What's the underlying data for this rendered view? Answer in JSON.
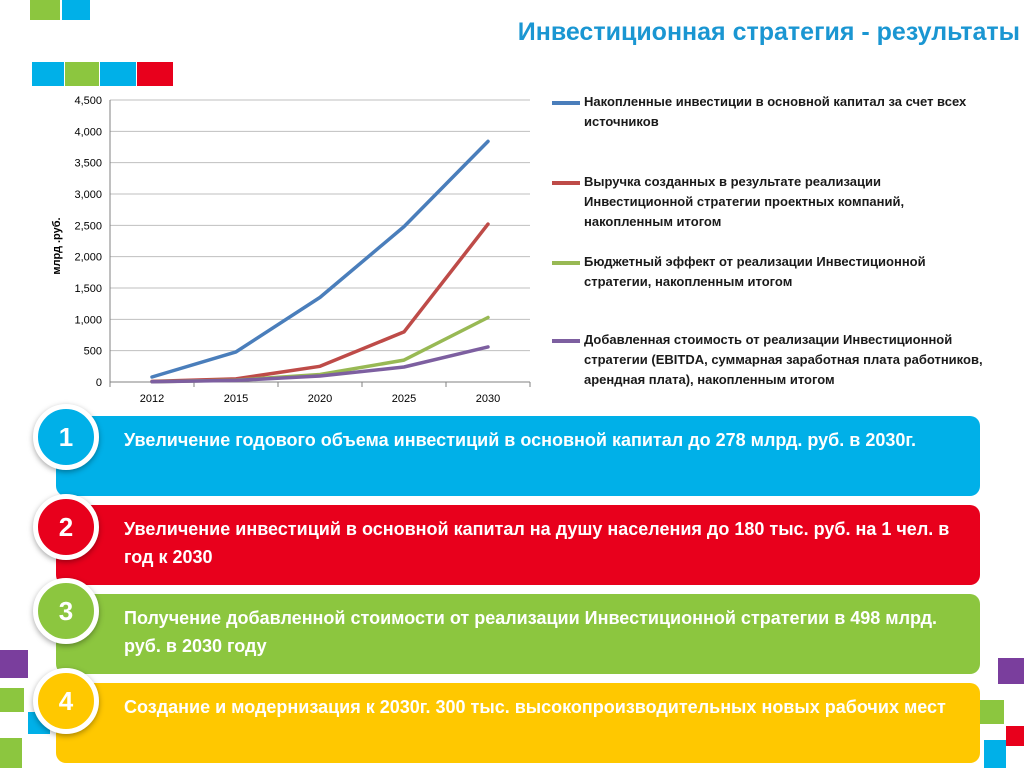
{
  "page": {
    "title": "Инвестиционная стратегия - результаты"
  },
  "colors": {
    "cyan": "#00b0e8",
    "green": "#8cc63f",
    "red": "#e8001c",
    "yellow": "#ffc800",
    "purple": "#7a3e9d",
    "title": "#1a96d2"
  },
  "chart_data": {
    "type": "line",
    "x": [
      "2012",
      "2015",
      "2020",
      "2025",
      "2030"
    ],
    "ylabel": "млрд .руб.",
    "ylim": [
      0,
      4500
    ],
    "yticks": [
      "0",
      "500",
      "1,000",
      "1,500",
      "2,000",
      "2,500",
      "3,000",
      "3,500",
      "4,000",
      "4,500"
    ],
    "grid": true,
    "legend_position": "right",
    "series": [
      {
        "name": "Накопленные инвестиции в основной капитал за счет всех источников",
        "color": "#4a7ebb",
        "values": [
          80,
          480,
          1350,
          2480,
          3840
        ]
      },
      {
        "name": "Выручка созданных в результате реализации Инвестиционной стратегии проектных компаний, накопленным итогом",
        "color": "#be4b48",
        "values": [
          10,
          50,
          250,
          800,
          2520
        ]
      },
      {
        "name": "Бюджетный эффект от реализации Инвестиционной стратегии, накопленным итогом",
        "color": "#98b954",
        "values": [
          5,
          30,
          120,
          350,
          1030
        ]
      },
      {
        "name": "Добавленная стоимость от реализации Инвестиционной стратегии (EBITDA, суммарная заработная плата работников, арендная плата), накопленным итогом",
        "color": "#7d5fa0",
        "values": [
          5,
          25,
          95,
          240,
          560
        ]
      }
    ]
  },
  "results": [
    {
      "number": "1",
      "text": "Увеличение годового объема инвестиций в основной капитал до 278 млрд. руб. в 2030г.",
      "color": "#00b0e8"
    },
    {
      "number": "2",
      "text": "Увеличение инвестиций в основной капитал на душу населения до 180 тыс. руб. на 1 чел. в год к 2030",
      "color": "#e8001c"
    },
    {
      "number": "3",
      "text": "Получение добавленной стоимости от реализации Инвестиционной стратегии в 498 млрд. руб. в 2030 году",
      "color": "#8cc63f"
    },
    {
      "number": "4",
      "text": "Создание и модернизация к 2030г. 300 тыс. высокопроизводительных новых рабочих мест",
      "color": "#ffc800"
    }
  ]
}
